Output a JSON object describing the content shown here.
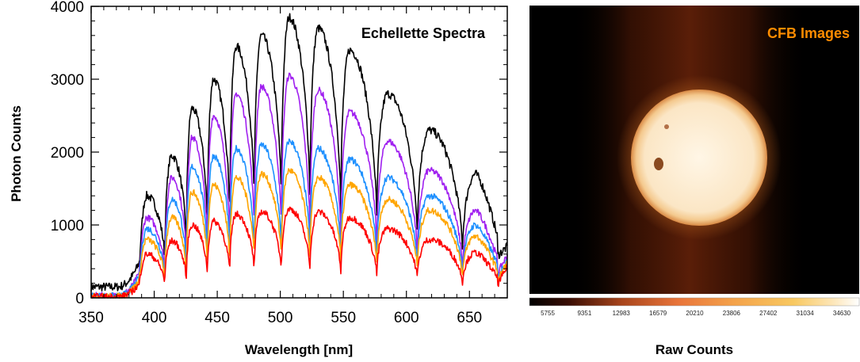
{
  "chart_data": [
    {
      "type": "line",
      "title": "Echellette Spectra",
      "xlabel": "Wavelength [nm]",
      "ylabel": "Photon Counts",
      "xlim": [
        350,
        680
      ],
      "ylim": [
        0,
        4000
      ],
      "x_ticks": [
        350,
        400,
        450,
        500,
        550,
        600,
        650
      ],
      "y_ticks": [
        0,
        1000,
        2000,
        3000,
        4000
      ],
      "grid": false,
      "legend": "none",
      "series": [
        {
          "color": "#000000",
          "baseline": 150,
          "peaks": [
            [
              394,
              1400
            ],
            [
              414,
              1950
            ],
            [
              430,
              2600
            ],
            [
              447,
              3000
            ],
            [
              465,
              3450
            ],
            [
              485,
              3600
            ],
            [
              507,
              3850
            ],
            [
              530,
              3700
            ],
            [
              555,
              3400
            ],
            [
              585,
              2800
            ],
            [
              618,
              2300
            ],
            [
              655,
              1700
            ]
          ]
        },
        {
          "color": "#a020f0",
          "baseline": 30,
          "peaks": [
            [
              394,
              1100
            ],
            [
              414,
              1650
            ],
            [
              430,
              2200
            ],
            [
              447,
              2500
            ],
            [
              465,
              2800
            ],
            [
              485,
              2900
            ],
            [
              507,
              3050
            ],
            [
              530,
              2850
            ],
            [
              555,
              2550
            ],
            [
              585,
              2150
            ],
            [
              618,
              1750
            ],
            [
              655,
              1200
            ]
          ]
        },
        {
          "color": "#1e90ff",
          "baseline": 25,
          "peaks": [
            [
              394,
              950
            ],
            [
              414,
              1350
            ],
            [
              430,
              1800
            ],
            [
              447,
              1950
            ],
            [
              465,
              2050
            ],
            [
              485,
              2100
            ],
            [
              507,
              2150
            ],
            [
              530,
              2050
            ],
            [
              555,
              1900
            ],
            [
              585,
              1650
            ],
            [
              618,
              1400
            ],
            [
              655,
              1000
            ]
          ]
        },
        {
          "color": "#ffa500",
          "baseline": 20,
          "peaks": [
            [
              394,
              800
            ],
            [
              414,
              1100
            ],
            [
              430,
              1450
            ],
            [
              447,
              1550
            ],
            [
              465,
              1650
            ],
            [
              485,
              1700
            ],
            [
              507,
              1750
            ],
            [
              530,
              1650
            ],
            [
              555,
              1550
            ],
            [
              585,
              1350
            ],
            [
              618,
              1200
            ],
            [
              655,
              850
            ]
          ]
        },
        {
          "color": "#ff0000",
          "baseline": 15,
          "peaks": [
            [
              394,
              600
            ],
            [
              414,
              780
            ],
            [
              430,
              1000
            ],
            [
              447,
              1050
            ],
            [
              465,
              1150
            ],
            [
              485,
              1180
            ],
            [
              507,
              1220
            ],
            [
              530,
              1180
            ],
            [
              555,
              1100
            ],
            [
              585,
              950
            ],
            [
              618,
              800
            ],
            [
              655,
              620
            ]
          ]
        }
      ]
    },
    {
      "type": "heatmap",
      "title": "CFB Images",
      "xlabel": "Raw Counts",
      "colorbar_ticks": [
        5755,
        9351,
        12983,
        16579,
        20210,
        23806,
        27402,
        31034,
        34630
      ]
    }
  ],
  "colors": {
    "spectra_title": "#000000",
    "cfb_title": "#ff8c00",
    "cfb_background": "#000000",
    "sun_disk": "#fdf0dc"
  }
}
